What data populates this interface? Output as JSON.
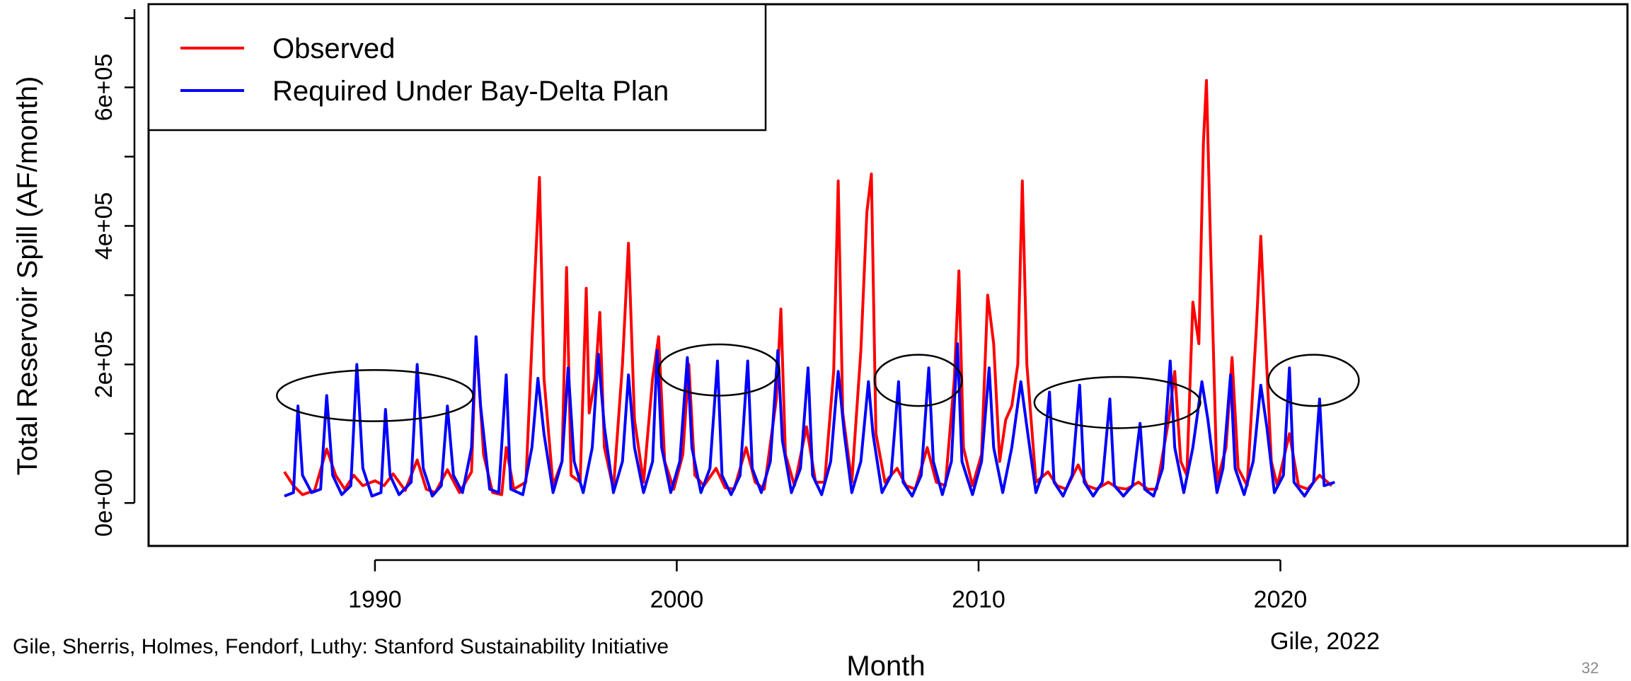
{
  "chart_data": {
    "type": "line",
    "xlabel": "Month",
    "ylabel": "Total Reservoir Spill (AF/month)",
    "x_ticks": [
      1990,
      2000,
      2010,
      2020
    ],
    "y_ticks": [
      {
        "value": 0,
        "label": "0e+00"
      },
      {
        "value": 200000,
        "label": "2e+05"
      },
      {
        "value": 400000,
        "label": "4e+05"
      },
      {
        "value": 600000,
        "label": "6e+05"
      }
    ],
    "xlim": [
      1982.5,
      2031.5
    ],
    "ylim": [
      -62000,
      720000
    ],
    "legend": "top-left",
    "grid": false,
    "series": [
      {
        "name": "Observed",
        "color": "#ff0000",
        "points": [
          [
            1987.0,
            45000
          ],
          [
            1987.3,
            25000
          ],
          [
            1987.6,
            12000
          ],
          [
            1988.0,
            18000
          ],
          [
            1988.4,
            78000
          ],
          [
            1988.7,
            40000
          ],
          [
            1989.0,
            20000
          ],
          [
            1989.3,
            40000
          ],
          [
            1989.6,
            25000
          ],
          [
            1990.0,
            32000
          ],
          [
            1990.3,
            25000
          ],
          [
            1990.6,
            42000
          ],
          [
            1991.0,
            18000
          ],
          [
            1991.4,
            62000
          ],
          [
            1991.7,
            20000
          ],
          [
            1992.0,
            15000
          ],
          [
            1992.4,
            48000
          ],
          [
            1992.8,
            15000
          ],
          [
            1993.2,
            45000
          ],
          [
            1993.35,
            240000
          ],
          [
            1993.6,
            70000
          ],
          [
            1993.9,
            15000
          ],
          [
            1994.2,
            12000
          ],
          [
            1994.35,
            80000
          ],
          [
            1994.6,
            20000
          ],
          [
            1995.0,
            30000
          ],
          [
            1995.3,
            330000
          ],
          [
            1995.45,
            470000
          ],
          [
            1995.6,
            180000
          ],
          [
            1995.9,
            25000
          ],
          [
            1996.2,
            60000
          ],
          [
            1996.35,
            340000
          ],
          [
            1996.5,
            40000
          ],
          [
            1996.8,
            30000
          ],
          [
            1997.0,
            310000
          ],
          [
            1997.1,
            130000
          ],
          [
            1997.3,
            180000
          ],
          [
            1997.45,
            275000
          ],
          [
            1997.6,
            80000
          ],
          [
            1997.9,
            20000
          ],
          [
            1998.2,
            200000
          ],
          [
            1998.4,
            375000
          ],
          [
            1998.6,
            120000
          ],
          [
            1998.9,
            30000
          ],
          [
            1999.2,
            180000
          ],
          [
            1999.4,
            240000
          ],
          [
            1999.6,
            60000
          ],
          [
            1999.9,
            20000
          ],
          [
            2000.2,
            70000
          ],
          [
            2000.4,
            200000
          ],
          [
            2000.6,
            40000
          ],
          [
            2000.9,
            25000
          ],
          [
            2001.3,
            50000
          ],
          [
            2001.6,
            22000
          ],
          [
            2001.9,
            20000
          ],
          [
            2002.3,
            80000
          ],
          [
            2002.6,
            30000
          ],
          [
            2002.9,
            20000
          ],
          [
            2003.3,
            150000
          ],
          [
            2003.45,
            280000
          ],
          [
            2003.6,
            70000
          ],
          [
            2003.9,
            25000
          ],
          [
            2004.3,
            110000
          ],
          [
            2004.6,
            30000
          ],
          [
            2004.9,
            30000
          ],
          [
            2005.2,
            190000
          ],
          [
            2005.35,
            465000
          ],
          [
            2005.5,
            130000
          ],
          [
            2005.8,
            30000
          ],
          [
            2006.1,
            220000
          ],
          [
            2006.3,
            420000
          ],
          [
            2006.45,
            475000
          ],
          [
            2006.6,
            100000
          ],
          [
            2006.9,
            30000
          ],
          [
            2007.3,
            50000
          ],
          [
            2007.6,
            25000
          ],
          [
            2007.9,
            20000
          ],
          [
            2008.3,
            80000
          ],
          [
            2008.6,
            30000
          ],
          [
            2008.9,
            25000
          ],
          [
            2009.2,
            180000
          ],
          [
            2009.35,
            335000
          ],
          [
            2009.5,
            80000
          ],
          [
            2009.8,
            25000
          ],
          [
            2010.1,
            70000
          ],
          [
            2010.3,
            300000
          ],
          [
            2010.5,
            230000
          ],
          [
            2010.7,
            60000
          ],
          [
            2010.9,
            120000
          ],
          [
            2011.1,
            140000
          ],
          [
            2011.3,
            200000
          ],
          [
            2011.45,
            465000
          ],
          [
            2011.6,
            200000
          ],
          [
            2011.9,
            30000
          ],
          [
            2012.3,
            45000
          ],
          [
            2012.6,
            25000
          ],
          [
            2012.9,
            20000
          ],
          [
            2013.3,
            55000
          ],
          [
            2013.6,
            25000
          ],
          [
            2013.9,
            20000
          ],
          [
            2014.3,
            30000
          ],
          [
            2014.6,
            22000
          ],
          [
            2014.9,
            20000
          ],
          [
            2015.3,
            30000
          ],
          [
            2015.6,
            20000
          ],
          [
            2015.9,
            20000
          ],
          [
            2016.3,
            120000
          ],
          [
            2016.5,
            190000
          ],
          [
            2016.7,
            60000
          ],
          [
            2016.9,
            40000
          ],
          [
            2017.1,
            290000
          ],
          [
            2017.3,
            230000
          ],
          [
            2017.45,
            520000
          ],
          [
            2017.55,
            610000
          ],
          [
            2017.7,
            350000
          ],
          [
            2017.9,
            30000
          ],
          [
            2018.2,
            80000
          ],
          [
            2018.4,
            210000
          ],
          [
            2018.6,
            50000
          ],
          [
            2018.9,
            25000
          ],
          [
            2019.2,
            250000
          ],
          [
            2019.35,
            385000
          ],
          [
            2019.5,
            240000
          ],
          [
            2019.7,
            60000
          ],
          [
            2019.9,
            25000
          ],
          [
            2020.3,
            100000
          ],
          [
            2020.6,
            25000
          ],
          [
            2020.9,
            20000
          ],
          [
            2021.3,
            40000
          ],
          [
            2021.7,
            25000
          ]
        ]
      },
      {
        "name": "Required Under Bay-Delta Plan",
        "color": "#0000ff",
        "points": [
          [
            1987.0,
            10000
          ],
          [
            1987.3,
            15000
          ],
          [
            1987.45,
            140000
          ],
          [
            1987.6,
            40000
          ],
          [
            1987.9,
            15000
          ],
          [
            1988.2,
            20000
          ],
          [
            1988.4,
            155000
          ],
          [
            1988.6,
            40000
          ],
          [
            1988.9,
            12000
          ],
          [
            1989.2,
            25000
          ],
          [
            1989.4,
            200000
          ],
          [
            1989.6,
            50000
          ],
          [
            1989.9,
            10000
          ],
          [
            1990.2,
            15000
          ],
          [
            1990.35,
            135000
          ],
          [
            1990.5,
            40000
          ],
          [
            1990.8,
            12000
          ],
          [
            1991.2,
            30000
          ],
          [
            1991.4,
            200000
          ],
          [
            1991.6,
            50000
          ],
          [
            1991.9,
            10000
          ],
          [
            1992.2,
            25000
          ],
          [
            1992.4,
            140000
          ],
          [
            1992.6,
            40000
          ],
          [
            1992.9,
            15000
          ],
          [
            1993.2,
            80000
          ],
          [
            1993.35,
            240000
          ],
          [
            1993.5,
            140000
          ],
          [
            1993.8,
            20000
          ],
          [
            1994.1,
            15000
          ],
          [
            1994.35,
            185000
          ],
          [
            1994.5,
            20000
          ],
          [
            1994.9,
            12000
          ],
          [
            1995.2,
            80000
          ],
          [
            1995.4,
            180000
          ],
          [
            1995.6,
            100000
          ],
          [
            1995.9,
            15000
          ],
          [
            1996.2,
            60000
          ],
          [
            1996.4,
            195000
          ],
          [
            1996.6,
            60000
          ],
          [
            1996.9,
            15000
          ],
          [
            1997.2,
            80000
          ],
          [
            1997.4,
            215000
          ],
          [
            1997.6,
            110000
          ],
          [
            1997.9,
            15000
          ],
          [
            1998.2,
            60000
          ],
          [
            1998.4,
            185000
          ],
          [
            1998.6,
            80000
          ],
          [
            1998.9,
            15000
          ],
          [
            1999.2,
            60000
          ],
          [
            1999.35,
            220000
          ],
          [
            1999.5,
            80000
          ],
          [
            1999.8,
            15000
          ],
          [
            2000.1,
            60000
          ],
          [
            2000.35,
            210000
          ],
          [
            2000.5,
            80000
          ],
          [
            2000.8,
            15000
          ],
          [
            2001.1,
            50000
          ],
          [
            2001.35,
            205000
          ],
          [
            2001.5,
            40000
          ],
          [
            2001.8,
            12000
          ],
          [
            2002.1,
            40000
          ],
          [
            2002.35,
            205000
          ],
          [
            2002.5,
            50000
          ],
          [
            2002.8,
            15000
          ],
          [
            2003.1,
            60000
          ],
          [
            2003.35,
            220000
          ],
          [
            2003.5,
            90000
          ],
          [
            2003.8,
            15000
          ],
          [
            2004.1,
            50000
          ],
          [
            2004.35,
            195000
          ],
          [
            2004.5,
            40000
          ],
          [
            2004.8,
            12000
          ],
          [
            2005.1,
            60000
          ],
          [
            2005.35,
            190000
          ],
          [
            2005.55,
            100000
          ],
          [
            2005.8,
            15000
          ],
          [
            2006.1,
            60000
          ],
          [
            2006.35,
            175000
          ],
          [
            2006.5,
            100000
          ],
          [
            2006.8,
            15000
          ],
          [
            2007.1,
            40000
          ],
          [
            2007.35,
            175000
          ],
          [
            2007.5,
            30000
          ],
          [
            2007.8,
            10000
          ],
          [
            2008.1,
            40000
          ],
          [
            2008.35,
            195000
          ],
          [
            2008.5,
            60000
          ],
          [
            2008.8,
            12000
          ],
          [
            2009.1,
            60000
          ],
          [
            2009.3,
            230000
          ],
          [
            2009.45,
            60000
          ],
          [
            2009.8,
            12000
          ],
          [
            2010.1,
            60000
          ],
          [
            2010.35,
            195000
          ],
          [
            2010.5,
            80000
          ],
          [
            2010.8,
            15000
          ],
          [
            2011.1,
            80000
          ],
          [
            2011.4,
            175000
          ],
          [
            2011.6,
            110000
          ],
          [
            2011.9,
            15000
          ],
          [
            2012.1,
            40000
          ],
          [
            2012.35,
            160000
          ],
          [
            2012.5,
            30000
          ],
          [
            2012.8,
            10000
          ],
          [
            2013.1,
            40000
          ],
          [
            2013.35,
            170000
          ],
          [
            2013.5,
            30000
          ],
          [
            2013.8,
            10000
          ],
          [
            2014.1,
            30000
          ],
          [
            2014.35,
            150000
          ],
          [
            2014.5,
            25000
          ],
          [
            2014.8,
            10000
          ],
          [
            2015.1,
            25000
          ],
          [
            2015.35,
            115000
          ],
          [
            2015.5,
            20000
          ],
          [
            2015.8,
            10000
          ],
          [
            2016.1,
            50000
          ],
          [
            2016.35,
            205000
          ],
          [
            2016.5,
            80000
          ],
          [
            2016.8,
            15000
          ],
          [
            2017.1,
            80000
          ],
          [
            2017.4,
            175000
          ],
          [
            2017.6,
            120000
          ],
          [
            2017.9,
            15000
          ],
          [
            2018.1,
            50000
          ],
          [
            2018.35,
            185000
          ],
          [
            2018.5,
            50000
          ],
          [
            2018.8,
            12000
          ],
          [
            2019.1,
            60000
          ],
          [
            2019.35,
            170000
          ],
          [
            2019.55,
            110000
          ],
          [
            2019.8,
            15000
          ],
          [
            2020.1,
            40000
          ],
          [
            2020.3,
            195000
          ],
          [
            2020.45,
            30000
          ],
          [
            2020.8,
            10000
          ],
          [
            2021.1,
            30000
          ],
          [
            2021.3,
            150000
          ],
          [
            2021.45,
            25000
          ],
          [
            2021.8,
            30000
          ]
        ]
      }
    ],
    "annotations": {
      "type": "ellipse",
      "items": [
        {
          "cx": 1990.0,
          "cy": 155000,
          "rx": 3.25,
          "ry": 37000
        },
        {
          "cx": 2001.4,
          "cy": 192000,
          "rx": 2.0,
          "ry": 37000
        },
        {
          "cx": 2008.0,
          "cy": 177000,
          "rx": 1.45,
          "ry": 37000
        },
        {
          "cx": 2014.6,
          "cy": 145000,
          "rx": 2.75,
          "ry": 37000
        },
        {
          "cx": 2021.1,
          "cy": 177000,
          "rx": 1.5,
          "ry": 37000
        }
      ]
    }
  },
  "footer": {
    "credit": "Gile, Sherris, Holmes, Fendorf, Luthy:  Stanford Sustainability Initiative",
    "citation": "Gile, 2022",
    "slide_number": "32"
  }
}
